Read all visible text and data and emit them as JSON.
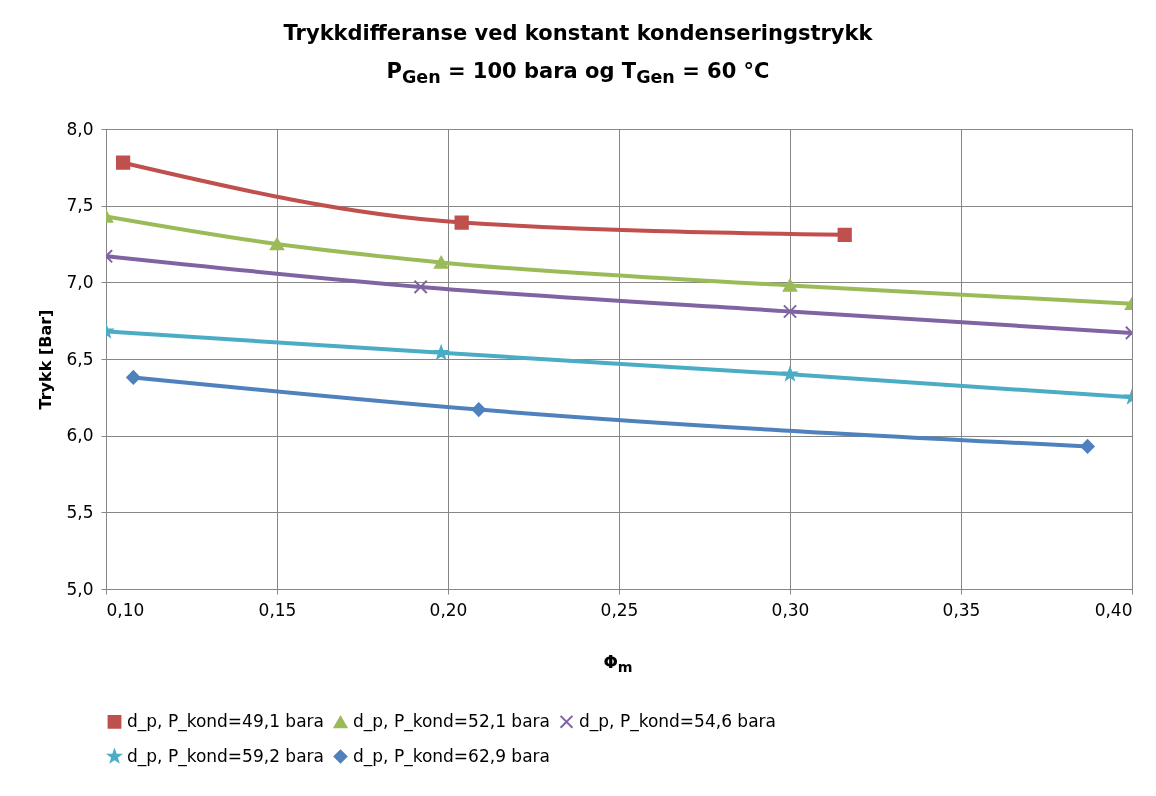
{
  "chart_data": {
    "type": "line",
    "title": "Trykkdifferanse ved konstant kondenseringstrykk",
    "subtitle": "P$_{Gen}$ = 100 bara og T$_{Gen}$ = 60 °C",
    "xlabel": "Φ$_{m}$",
    "ylabel": "Trykk [Bar]",
    "xlim": [
      0.1,
      0.4
    ],
    "xticks": [
      {
        "value": 0.1,
        "label": "0,10"
      },
      {
        "value": 0.15,
        "label": "0,15"
      },
      {
        "value": 0.2,
        "label": "0,20"
      },
      {
        "value": 0.25,
        "label": "0,25"
      },
      {
        "value": 0.3,
        "label": "0,30"
      },
      {
        "value": 0.35,
        "label": "0,35"
      },
      {
        "value": 0.4,
        "label": "0,40"
      }
    ],
    "ylim": [
      5,
      8
    ],
    "yticks": [
      {
        "value": 5,
        "label": "5,0"
      },
      {
        "value": 5.5,
        "label": "5,5"
      },
      {
        "value": 6,
        "label": "6,0"
      },
      {
        "value": 6.5,
        "label": "6,5"
      },
      {
        "value": 7,
        "label": "7,0"
      },
      {
        "value": 7.5,
        "label": "7,5"
      },
      {
        "value": 8,
        "label": "8,0"
      }
    ],
    "grid": true,
    "legend": "bottom",
    "series": [
      {
        "name": "d_p, P_kond=49,1 bara",
        "color": "#c0504d",
        "marker": "square",
        "x": [
          0.105,
          0.204,
          0.316
        ],
        "values": [
          7.78,
          7.39,
          7.31
        ]
      },
      {
        "name": "d_p, P_kond=52,1 bara",
        "color": "#9bbb59",
        "marker": "triangle",
        "x": [
          0.1,
          0.15,
          0.198,
          0.3,
          0.4
        ],
        "values": [
          7.43,
          7.25,
          7.13,
          6.98,
          6.86
        ]
      },
      {
        "name": "d_p, P_kond=54,6 bara",
        "color": "#8064a2",
        "marker": "cross",
        "x": [
          0.1,
          0.192,
          0.3,
          0.4
        ],
        "values": [
          7.17,
          6.97,
          6.81,
          6.67
        ]
      },
      {
        "name": "d_p, P_kond=59,2 bara",
        "color": "#4bacc6",
        "marker": "star",
        "x": [
          0.1,
          0.198,
          0.3,
          0.4
        ],
        "values": [
          6.68,
          6.54,
          6.4,
          6.25
        ]
      },
      {
        "name": "d_p, P_kond=62,9 bara",
        "color": "#4f81bd",
        "marker": "diamond",
        "x": [
          0.108,
          0.209,
          0.387
        ],
        "values": [
          6.38,
          6.17,
          5.93
        ]
      }
    ]
  }
}
